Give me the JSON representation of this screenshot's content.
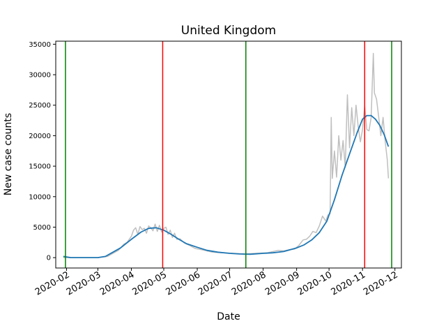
{
  "chart_data": {
    "type": "line",
    "title": "United Kingdom",
    "xlabel": "Date",
    "ylabel": "New case counts",
    "x_axis": "date",
    "xlim": [
      "2020-01-22",
      "2020-12-07"
    ],
    "ylim": [
      -1700,
      35500
    ],
    "yticks": [
      0,
      5000,
      10000,
      15000,
      20000,
      25000,
      30000,
      35000
    ],
    "xticks": [
      "2020-02",
      "2020-03",
      "2020-04",
      "2020-05",
      "2020-06",
      "2020-07",
      "2020-08",
      "2020-09",
      "2020-10",
      "2020-11",
      "2020-12"
    ],
    "xtick_dates": [
      "2020-02-01",
      "2020-03-01",
      "2020-04-01",
      "2020-05-01",
      "2020-06-01",
      "2020-07-01",
      "2020-08-01",
      "2020-09-01",
      "2020-10-01",
      "2020-11-01",
      "2020-12-01"
    ],
    "grid": false,
    "legend": "none",
    "series": [
      {
        "role": "raw daily counts",
        "color": "#bfbfbf",
        "x": [
          "2020-01-29",
          "2020-02-15",
          "2020-03-01",
          "2020-03-10",
          "2020-03-15",
          "2020-03-20",
          "2020-03-25",
          "2020-03-28",
          "2020-04-01",
          "2020-04-03",
          "2020-04-05",
          "2020-04-07",
          "2020-04-09",
          "2020-04-11",
          "2020-04-13",
          "2020-04-15",
          "2020-04-17",
          "2020-04-19",
          "2020-04-21",
          "2020-04-23",
          "2020-04-25",
          "2020-04-27",
          "2020-04-29",
          "2020-05-01",
          "2020-05-03",
          "2020-05-05",
          "2020-05-07",
          "2020-05-09",
          "2020-05-11",
          "2020-05-13",
          "2020-05-16",
          "2020-05-20",
          "2020-05-25",
          "2020-05-30",
          "2020-06-05",
          "2020-06-15",
          "2020-06-25",
          "2020-07-05",
          "2020-07-15",
          "2020-07-25",
          "2020-08-05",
          "2020-08-15",
          "2020-08-20",
          "2020-08-25",
          "2020-08-30",
          "2020-09-03",
          "2020-09-07",
          "2020-09-10",
          "2020-09-13",
          "2020-09-16",
          "2020-09-19",
          "2020-09-22",
          "2020-09-25",
          "2020-09-28",
          "2020-09-30",
          "2020-10-02",
          "2020-10-03",
          "2020-10-04",
          "2020-10-06",
          "2020-10-08",
          "2020-10-10",
          "2020-10-12",
          "2020-10-14",
          "2020-10-16",
          "2020-10-18",
          "2020-10-20",
          "2020-10-22",
          "2020-10-24",
          "2020-10-26",
          "2020-10-28",
          "2020-10-30",
          "2020-11-01",
          "2020-11-03",
          "2020-11-05",
          "2020-11-07",
          "2020-11-09",
          "2020-11-11",
          "2020-11-12",
          "2020-11-14",
          "2020-11-16",
          "2020-11-18",
          "2020-11-20",
          "2020-11-22",
          "2020-11-24",
          "2020-11-25"
        ],
        "y": [
          0,
          0,
          0,
          200,
          700,
          1200,
          2200,
          2500,
          3500,
          4500,
          4900,
          3800,
          5100,
          4600,
          4800,
          4000,
          5200,
          4900,
          4400,
          5500,
          4300,
          5300,
          4200,
          4800,
          5000,
          3800,
          4500,
          3300,
          4000,
          3000,
          3100,
          2400,
          2000,
          1500,
          1300,
          900,
          800,
          700,
          600,
          700,
          800,
          1200,
          1100,
          1300,
          1400,
          2000,
          2900,
          3000,
          3500,
          4300,
          4100,
          5200,
          6800,
          6000,
          7000,
          7200,
          23000,
          13000,
          17500,
          13200,
          20000,
          16000,
          19200,
          14800,
          26700,
          18000,
          24600,
          20000,
          25000,
          21500,
          19000,
          21000,
          24900,
          21000,
          20800,
          23000,
          33500,
          27000,
          26000,
          23000,
          20000,
          23000,
          19000,
          16000,
          13000
        ]
      },
      {
        "role": "smoothed trend",
        "color": "#1f77b4",
        "x": [
          "2020-01-29",
          "2020-02-05",
          "2020-02-15",
          "2020-03-01",
          "2020-03-08",
          "2020-03-15",
          "2020-03-22",
          "2020-04-01",
          "2020-04-10",
          "2020-04-17",
          "2020-04-24",
          "2020-05-01",
          "2020-05-08",
          "2020-05-15",
          "2020-05-22",
          "2020-06-01",
          "2020-06-10",
          "2020-06-20",
          "2020-07-01",
          "2020-07-10",
          "2020-07-20",
          "2020-08-01",
          "2020-08-10",
          "2020-08-20",
          "2020-09-01",
          "2020-09-08",
          "2020-09-15",
          "2020-09-22",
          "2020-09-29",
          "2020-10-06",
          "2020-10-13",
          "2020-10-20",
          "2020-10-27",
          "2020-11-01",
          "2020-11-05",
          "2020-11-09",
          "2020-11-13",
          "2020-11-17",
          "2020-11-21",
          "2020-11-25"
        ],
        "y": [
          200,
          0,
          0,
          0,
          200,
          900,
          1600,
          3000,
          4200,
          4800,
          4900,
          4500,
          3800,
          3000,
          2300,
          1700,
          1200,
          900,
          700,
          600,
          550,
          700,
          800,
          1000,
          1600,
          2100,
          2900,
          4100,
          6000,
          9500,
          13500,
          17000,
          20500,
          22700,
          23300,
          23300,
          22700,
          21700,
          20200,
          18200
        ]
      }
    ],
    "vertical_lines": [
      {
        "x": "2020-01-31",
        "color": "#008000"
      },
      {
        "x": "2020-04-30",
        "color": "#ff0000"
      },
      {
        "x": "2020-07-16",
        "color": "#008000"
      },
      {
        "x": "2020-11-03",
        "color": "#ff0000"
      },
      {
        "x": "2020-11-28",
        "color": "#008000"
      }
    ]
  }
}
